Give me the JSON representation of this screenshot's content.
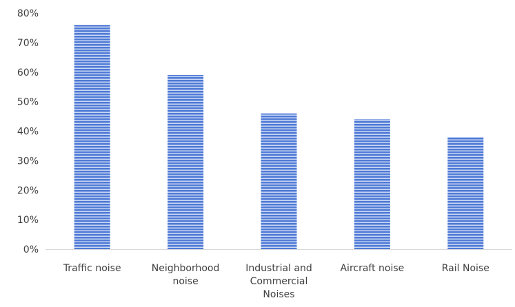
{
  "chart_data": {
    "type": "bar",
    "title": "",
    "xlabel": "",
    "ylabel": "",
    "categories": [
      [
        "Traffic noise"
      ],
      [
        "Neighborhood",
        "noise"
      ],
      [
        "Industrial and",
        "Commercial",
        "Noises"
      ],
      [
        "Aircraft noise"
      ],
      [
        "Rail Noise"
      ]
    ],
    "values": [
      0.76,
      0.59,
      0.46,
      0.44,
      0.38
    ],
    "ylim": [
      0,
      0.8
    ],
    "yticks": [
      0,
      0.1,
      0.2,
      0.3,
      0.4,
      0.5,
      0.6,
      0.7,
      0.8
    ],
    "ytick_labels": [
      "0%",
      "10%",
      "20%",
      "30%",
      "40%",
      "50%",
      "60%",
      "70%",
      "80%"
    ],
    "grid": false,
    "legend": "none",
    "colors": {
      "bar_fill": "#4f7ad6",
      "bar_stripe": "#e9effb",
      "axis_line": "#d9d9d9",
      "text": "#404040"
    }
  }
}
